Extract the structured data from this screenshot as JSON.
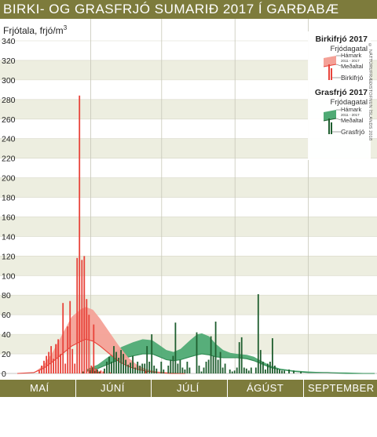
{
  "title": "BIRKI- OG GRASFRJÓ SUMARIÐ 2017 Í GARÐABÆ",
  "copyright": "© NÁTTÚRUFRÆÐISTOFNUN ÍSLANDS 2018",
  "months": [
    "MAÍ",
    "JÚNÍ",
    "JÚLÍ",
    "ÁGÚST",
    "SEPTEMBER"
  ],
  "colors": {
    "frame": "#7d7b3c",
    "birch": "#e8433a",
    "birch_band": "#f4a197",
    "grass": "#1f5e2f",
    "grass_band": "#4faa74",
    "plot_bg_light": "#ffffff",
    "plot_bg_dark": "#edeee0"
  },
  "legend": {
    "birki_title": "Birkifrjó 2017",
    "birki_sub": "Frjódagatal",
    "birki_hamark": "Hámark",
    "birki_years": "2011 - 2017",
    "birki_medaltal": "Meðaltal",
    "birki_series": "Birkifrjó",
    "gras_title": "Grasfrjó 2017",
    "gras_sub": "Frjódagatal",
    "gras_hamark": "Hámark",
    "gras_years": "2011 - 2017",
    "gras_medaltal": "Meðaltal",
    "gras_series": "Grasfrjó"
  },
  "chart_data": {
    "type": "bar",
    "ylabel": "Frjótala, frjó/m",
    "ylabel_sup": "3",
    "ylim": [
      0,
      340
    ],
    "yticks": [
      0,
      20,
      40,
      60,
      80,
      100,
      120,
      140,
      160,
      180,
      200,
      220,
      240,
      260,
      280,
      300,
      320,
      340
    ],
    "x_unit": "day of season (1 May = day 1)",
    "xlim": [
      1,
      152
    ],
    "month_start_days": [
      1,
      32,
      62,
      93,
      124
    ],
    "series": [
      {
        "name": "Birkifrjó",
        "kind": "bars",
        "points": [
          [
            10,
            3
          ],
          [
            11,
            8
          ],
          [
            12,
            13
          ],
          [
            13,
            18
          ],
          [
            14,
            22
          ],
          [
            15,
            28
          ],
          [
            16,
            15
          ],
          [
            17,
            30
          ],
          [
            18,
            35
          ],
          [
            19,
            20
          ],
          [
            20,
            72
          ],
          [
            21,
            10
          ],
          [
            22,
            48
          ],
          [
            23,
            74
          ],
          [
            24,
            25
          ],
          [
            25,
            10
          ],
          [
            26,
            118
          ],
          [
            27,
            284
          ],
          [
            28,
            116
          ],
          [
            29,
            120
          ],
          [
            30,
            76
          ],
          [
            31,
            60
          ],
          [
            32,
            8
          ],
          [
            33,
            50
          ],
          [
            34,
            5
          ],
          [
            35,
            2
          ],
          [
            36,
            3
          ],
          [
            37,
            2
          ],
          [
            40,
            1
          ],
          [
            55,
            2
          ]
        ]
      },
      {
        "name": "Grasfrjó",
        "kind": "bars",
        "points": [
          [
            28,
            2
          ],
          [
            31,
            3
          ],
          [
            32,
            6
          ],
          [
            33,
            3
          ],
          [
            34,
            4
          ],
          [
            35,
            2
          ],
          [
            37,
            5
          ],
          [
            38,
            12
          ],
          [
            39,
            17
          ],
          [
            40,
            12
          ],
          [
            41,
            28
          ],
          [
            42,
            22
          ],
          [
            43,
            16
          ],
          [
            44,
            24
          ],
          [
            45,
            20
          ],
          [
            46,
            14
          ],
          [
            47,
            9
          ],
          [
            48,
            11
          ],
          [
            49,
            18
          ],
          [
            50,
            6
          ],
          [
            51,
            12
          ],
          [
            52,
            8
          ],
          [
            53,
            10
          ],
          [
            54,
            10
          ],
          [
            55,
            28
          ],
          [
            56,
            12
          ],
          [
            57,
            40
          ],
          [
            58,
            8
          ],
          [
            59,
            5
          ],
          [
            61,
            12
          ],
          [
            62,
            4
          ],
          [
            64,
            8
          ],
          [
            65,
            14
          ],
          [
            66,
            18
          ],
          [
            67,
            52
          ],
          [
            68,
            10
          ],
          [
            69,
            14
          ],
          [
            70,
            6
          ],
          [
            71,
            4
          ],
          [
            72,
            12
          ],
          [
            73,
            6
          ],
          [
            76,
            42
          ],
          [
            77,
            8
          ],
          [
            78,
            2
          ],
          [
            79,
            6
          ],
          [
            80,
            12
          ],
          [
            81,
            14
          ],
          [
            82,
            38
          ],
          [
            83,
            18
          ],
          [
            84,
            53
          ],
          [
            85,
            14
          ],
          [
            86,
            22
          ],
          [
            87,
            6
          ],
          [
            88,
            10
          ],
          [
            90,
            4
          ],
          [
            91,
            2
          ],
          [
            92,
            3
          ],
          [
            93,
            6
          ],
          [
            94,
            32
          ],
          [
            95,
            37
          ],
          [
            96,
            6
          ],
          [
            97,
            5
          ],
          [
            98,
            3
          ],
          [
            99,
            6
          ],
          [
            101,
            6
          ],
          [
            102,
            81
          ],
          [
            103,
            24
          ],
          [
            104,
            12
          ],
          [
            105,
            4
          ],
          [
            106,
            10
          ],
          [
            107,
            12
          ],
          [
            108,
            36
          ],
          [
            109,
            8
          ],
          [
            110,
            5
          ],
          [
            111,
            4
          ],
          [
            112,
            3
          ],
          [
            113,
            3
          ],
          [
            115,
            4
          ],
          [
            117,
            3
          ],
          [
            120,
            2
          ]
        ]
      },
      {
        "name": "Birki Hámark",
        "kind": "band_upper",
        "points": [
          [
            1,
            0
          ],
          [
            8,
            1
          ],
          [
            12,
            8
          ],
          [
            16,
            22
          ],
          [
            20,
            40
          ],
          [
            24,
            58
          ],
          [
            28,
            66
          ],
          [
            30,
            68
          ],
          [
            33,
            65
          ],
          [
            36,
            56
          ],
          [
            40,
            42
          ],
          [
            44,
            28
          ],
          [
            48,
            16
          ],
          [
            52,
            8
          ],
          [
            56,
            4
          ],
          [
            60,
            2
          ],
          [
            66,
            1
          ],
          [
            72,
            0
          ]
        ]
      },
      {
        "name": "Birki Meðaltal",
        "kind": "band_lower",
        "points": [
          [
            1,
            0
          ],
          [
            8,
            1
          ],
          [
            12,
            5
          ],
          [
            16,
            12
          ],
          [
            20,
            20
          ],
          [
            24,
            28
          ],
          [
            28,
            33
          ],
          [
            30,
            35
          ],
          [
            33,
            33
          ],
          [
            36,
            28
          ],
          [
            40,
            20
          ],
          [
            44,
            12
          ],
          [
            48,
            7
          ],
          [
            52,
            4
          ],
          [
            56,
            2
          ],
          [
            60,
            1
          ],
          [
            66,
            0
          ],
          [
            72,
            0
          ]
        ]
      },
      {
        "name": "Gras Hámark",
        "kind": "band_upper",
        "points": [
          [
            30,
            4
          ],
          [
            35,
            9
          ],
          [
            40,
            18
          ],
          [
            45,
            27
          ],
          [
            50,
            32
          ],
          [
            54,
            35
          ],
          [
            58,
            34
          ],
          [
            61,
            29
          ],
          [
            64,
            24
          ],
          [
            67,
            22
          ],
          [
            70,
            25
          ],
          [
            74,
            34
          ],
          [
            77,
            40
          ],
          [
            79,
            41
          ],
          [
            82,
            38
          ],
          [
            85,
            30
          ],
          [
            88,
            24
          ],
          [
            91,
            21
          ],
          [
            94,
            20
          ],
          [
            98,
            19
          ],
          [
            101,
            17
          ],
          [
            104,
            13
          ],
          [
            108,
            8
          ],
          [
            112,
            5
          ],
          [
            118,
            3
          ],
          [
            124,
            2
          ],
          [
            132,
            1
          ],
          [
            140,
            1
          ],
          [
            152,
            0
          ]
        ]
      },
      {
        "name": "Gras Meðaltal",
        "kind": "band_lower",
        "points": [
          [
            30,
            2
          ],
          [
            35,
            5
          ],
          [
            40,
            10
          ],
          [
            45,
            15
          ],
          [
            50,
            18
          ],
          [
            54,
            20
          ],
          [
            58,
            20
          ],
          [
            61,
            17
          ],
          [
            64,
            14
          ],
          [
            67,
            13
          ],
          [
            70,
            14
          ],
          [
            74,
            17
          ],
          [
            77,
            19
          ],
          [
            79,
            20
          ],
          [
            82,
            19
          ],
          [
            85,
            17
          ],
          [
            88,
            16
          ],
          [
            91,
            16
          ],
          [
            94,
            16
          ],
          [
            98,
            15
          ],
          [
            101,
            13
          ],
          [
            104,
            10
          ],
          [
            108,
            6
          ],
          [
            112,
            4
          ],
          [
            118,
            2
          ],
          [
            124,
            1
          ],
          [
            132,
            1
          ],
          [
            140,
            0
          ],
          [
            152,
            0
          ]
        ]
      }
    ]
  }
}
